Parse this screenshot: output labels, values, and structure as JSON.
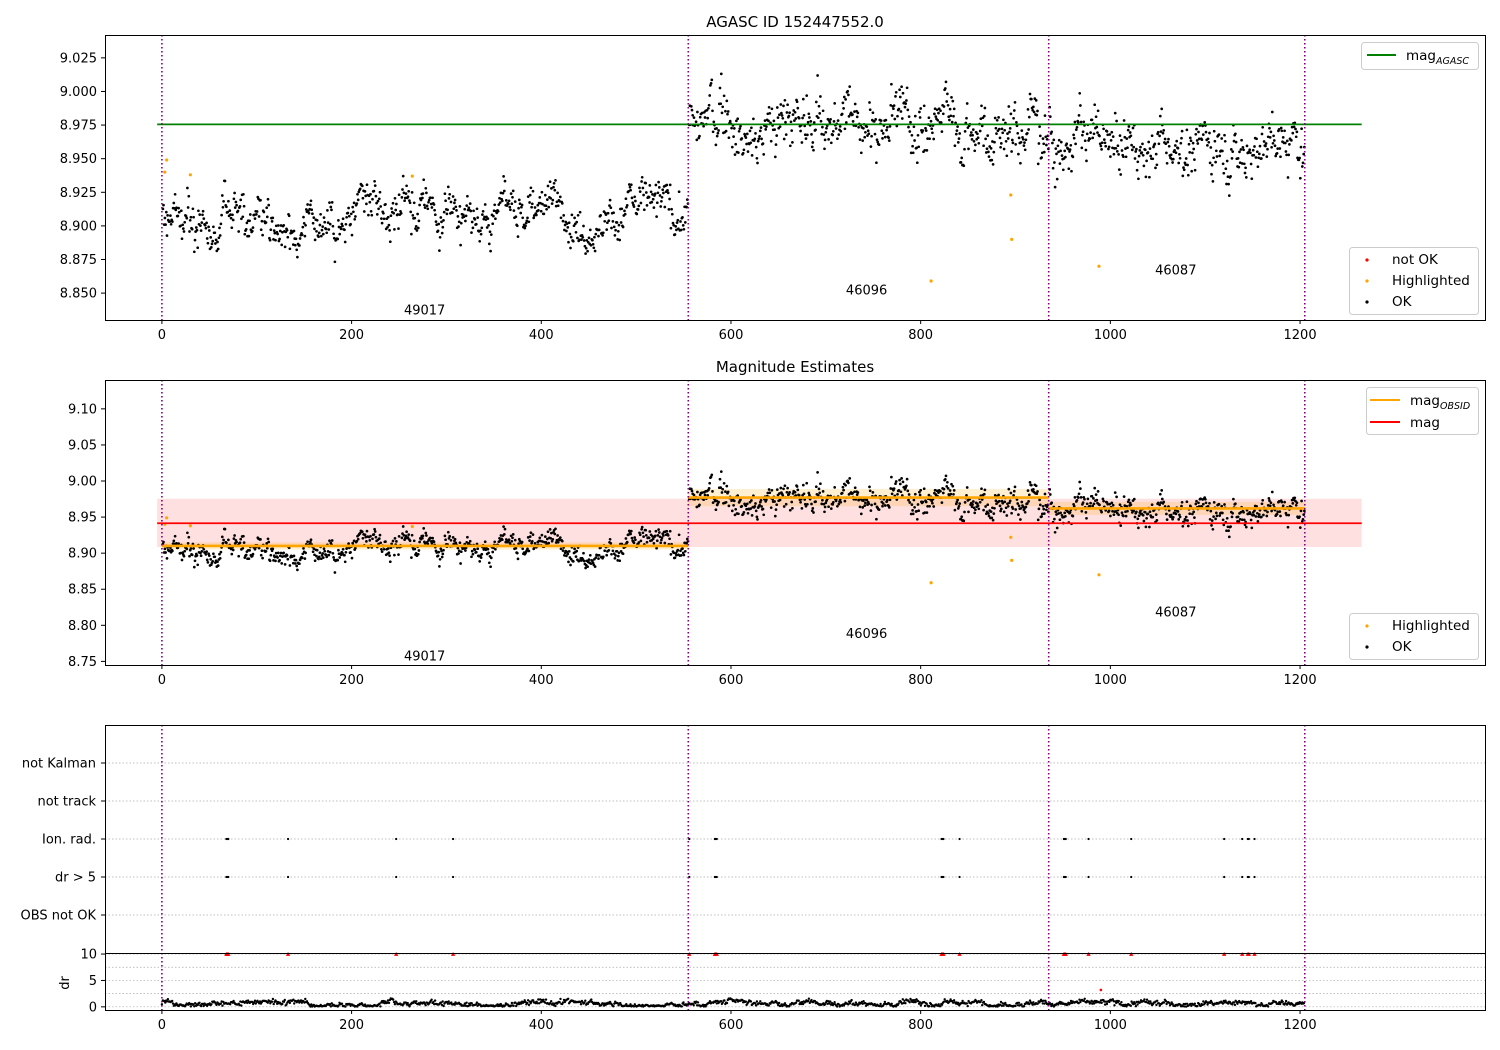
{
  "colors": {
    "ok": "#000000",
    "highlighted": "#FFA500",
    "not_ok": "#FF0000",
    "agasc_line": "#008000",
    "obsid_line": "#FFA500",
    "mag_line": "#FF0000",
    "obs_boundary": "#800080",
    "flag_grid": "#AAAAAA"
  },
  "chart_data": [
    {
      "type": "scatter",
      "title": "AGASC ID 152447552.0",
      "xlim": [
        -60,
        1395
      ],
      "ylim": [
        8.83,
        9.042
      ],
      "xticks": [
        0,
        200,
        400,
        600,
        800,
        1000,
        1200
      ],
      "xtick_labels": [
        "0",
        "200",
        "400",
        "600",
        "800",
        "1000",
        "1200"
      ],
      "yticks": [
        8.85,
        8.875,
        8.9,
        8.925,
        8.95,
        8.975,
        9.0,
        9.025
      ],
      "ytick_labels": [
        "8.850",
        "8.875",
        "8.900",
        "8.925",
        "8.950",
        "8.975",
        "9.000",
        "9.025"
      ],
      "obs_boundaries": [
        0,
        555,
        935,
        1205
      ],
      "obsids": [
        {
          "label": "49017",
          "x": 277,
          "y": 8.837
        },
        {
          "label": "46096",
          "x": 743,
          "y": 8.852
        },
        {
          "label": "46087",
          "x": 1069,
          "y": 8.867
        }
      ],
      "mag_agasc": {
        "value": 8.9755,
        "x_range": [
          -5,
          1265
        ]
      },
      "ok_segments": [
        {
          "x0": 0,
          "x1": 555,
          "mean": 8.91,
          "spread": 0.011
        },
        {
          "x0": 555,
          "x1": 935,
          "mean": 8.977,
          "spread": 0.014
        },
        {
          "x0": 935,
          "x1": 1205,
          "mean": 8.963,
          "spread": 0.013
        }
      ],
      "highlighted_points": [
        {
          "x": 3,
          "y": 8.94
        },
        {
          "x": 5,
          "y": 8.949
        },
        {
          "x": 30,
          "y": 8.938
        },
        {
          "x": 264,
          "y": 8.937
        },
        {
          "x": 811,
          "y": 8.859
        },
        {
          "x": 895,
          "y": 8.923
        },
        {
          "x": 896,
          "y": 8.89
        },
        {
          "x": 988,
          "y": 8.87
        }
      ],
      "legend_top": [
        {
          "label": "mag",
          "subscript": "AGASC"
        }
      ],
      "legend_bottom": [
        {
          "label": "not OK"
        },
        {
          "label": "Highlighted"
        },
        {
          "label": "OK"
        }
      ]
    },
    {
      "type": "scatter",
      "title": "Magnitude Estimates",
      "xlim": [
        -60,
        1395
      ],
      "ylim": [
        8.745,
        9.14
      ],
      "xticks": [
        0,
        200,
        400,
        600,
        800,
        1000,
        1200
      ],
      "xtick_labels": [
        "0",
        "200",
        "400",
        "600",
        "800",
        "1000",
        "1200"
      ],
      "yticks": [
        8.75,
        8.8,
        8.85,
        8.9,
        8.95,
        9.0,
        9.05,
        9.1
      ],
      "ytick_labels": [
        "8.75",
        "8.80",
        "8.85",
        "8.90",
        "8.95",
        "9.00",
        "9.05",
        "9.10"
      ],
      "obs_boundaries": [
        0,
        555,
        935,
        1205
      ],
      "obsids": [
        {
          "label": "49017",
          "x": 277,
          "y": 8.757
        },
        {
          "label": "46096",
          "x": 743,
          "y": 8.788
        },
        {
          "label": "46087",
          "x": 1069,
          "y": 8.818
        }
      ],
      "mag": {
        "value": 8.9415,
        "band": [
          8.9085,
          8.9755
        ],
        "x_range": [
          -5,
          1265
        ]
      },
      "mag_obsid": [
        {
          "x0": 0,
          "x1": 555,
          "value": 8.91,
          "band": [
            8.905,
            8.915
          ]
        },
        {
          "x0": 555,
          "x1": 935,
          "value": 8.977,
          "band": [
            8.965,
            8.989
          ]
        },
        {
          "x0": 935,
          "x1": 1205,
          "value": 8.962,
          "band": [
            8.953,
            8.971
          ]
        }
      ],
      "ok_segments": [
        {
          "x0": 0,
          "x1": 555,
          "mean": 8.91,
          "spread": 0.011
        },
        {
          "x0": 555,
          "x1": 935,
          "mean": 8.977,
          "spread": 0.014
        },
        {
          "x0": 935,
          "x1": 1205,
          "mean": 8.963,
          "spread": 0.013
        }
      ],
      "highlighted_points": [
        {
          "x": 3,
          "y": 8.94
        },
        {
          "x": 5,
          "y": 8.949
        },
        {
          "x": 30,
          "y": 8.938
        },
        {
          "x": 264,
          "y": 8.937
        },
        {
          "x": 811,
          "y": 8.859
        },
        {
          "x": 895,
          "y": 8.922
        },
        {
          "x": 896,
          "y": 8.89
        },
        {
          "x": 988,
          "y": 8.87
        }
      ],
      "legend_top": [
        {
          "label": "mag",
          "subscript": "OBSID"
        },
        {
          "label": "mag"
        }
      ],
      "legend_bottom": [
        {
          "label": "Highlighted"
        },
        {
          "label": "OK"
        }
      ]
    },
    {
      "type": "scatter",
      "title": "",
      "xlim": [
        -60,
        1395
      ],
      "categories": [
        "not Kalman",
        "not track",
        "Ion. rad.",
        "dr > 5",
        "OBS not OK"
      ],
      "obs_boundaries": [
        0,
        555,
        935,
        1205
      ],
      "flag_x": [
        68,
        69,
        70,
        133,
        247,
        307,
        556,
        583,
        584,
        585,
        822,
        823,
        824,
        841,
        951,
        952,
        953,
        977,
        1022,
        1120,
        1139,
        1145,
        1146,
        1152
      ],
      "flagged_rows": [
        "Ion. rad.",
        "dr > 5"
      ]
    },
    {
      "type": "scatter",
      "title": "",
      "ylabel": "dr",
      "xlim": [
        -60,
        1395
      ],
      "ylim": [
        -0.6,
        10.2
      ],
      "xticks": [
        0,
        200,
        400,
        600,
        800,
        1000,
        1200
      ],
      "xtick_labels": [
        "0",
        "200",
        "400",
        "600",
        "800",
        "1000",
        "1200"
      ],
      "yticks": [
        0,
        5,
        10
      ],
      "ytick_labels": [
        "0",
        "5",
        "10"
      ],
      "obs_boundaries": [
        0,
        555,
        935,
        1205
      ],
      "dr_range": [
        0,
        1205
      ],
      "dr_typical": 0.6,
      "dr_outlier": {
        "x": 990,
        "y": 3.2
      },
      "clipped_at": 10,
      "clipped_x": [
        68,
        69,
        70,
        133,
        247,
        307,
        556,
        583,
        584,
        585,
        822,
        823,
        824,
        841,
        951,
        952,
        953,
        977,
        1022,
        1120,
        1139,
        1145,
        1146,
        1152
      ]
    }
  ]
}
